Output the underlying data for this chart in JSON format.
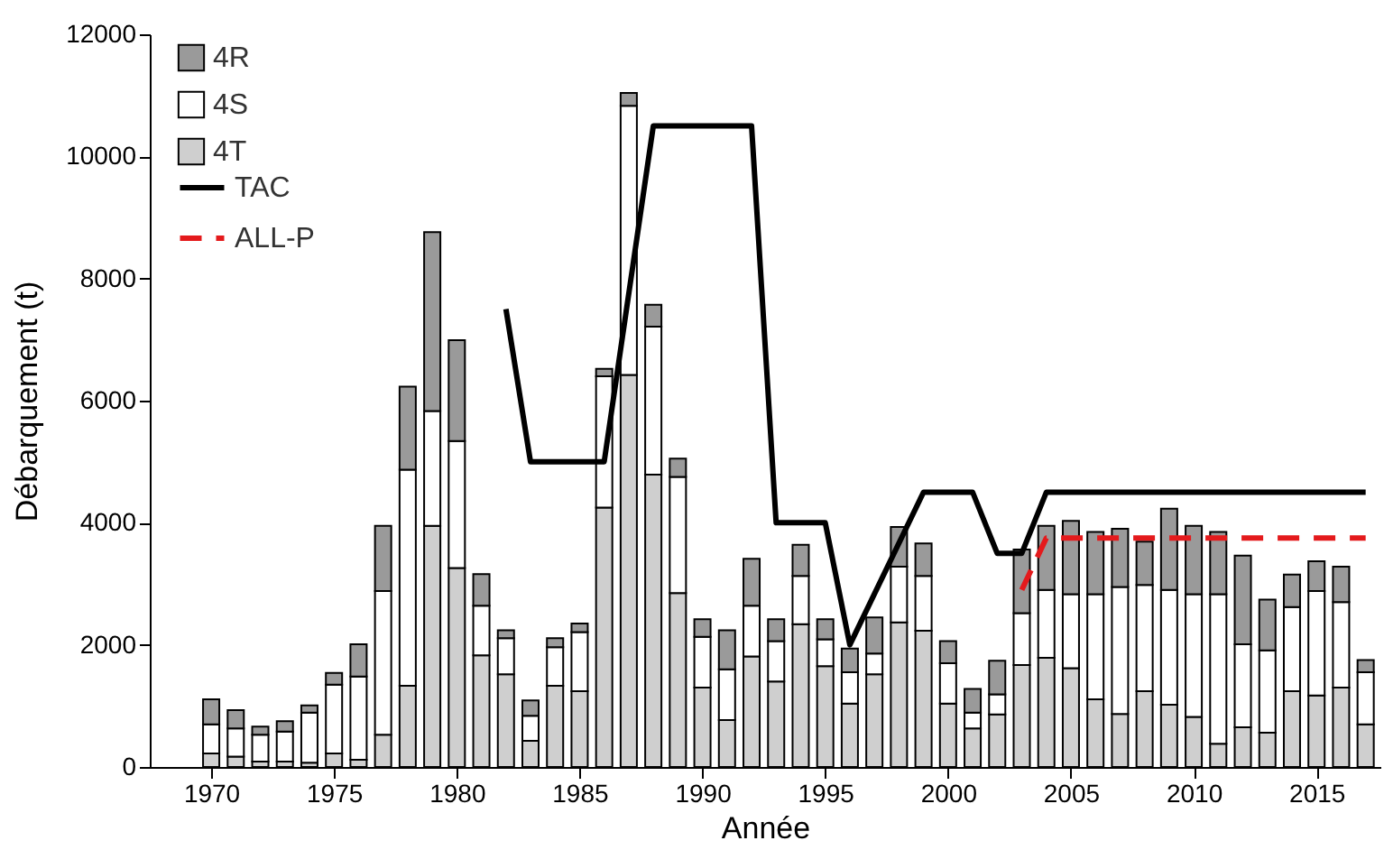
{
  "chart_data": {
    "type": "bar",
    "stacked": true,
    "xlabel": "Année",
    "ylabel": "Débarquement (t)",
    "x": [
      1970,
      1971,
      1972,
      1973,
      1974,
      1975,
      1976,
      1977,
      1978,
      1979,
      1980,
      1981,
      1982,
      1983,
      1984,
      1985,
      1986,
      1987,
      1988,
      1989,
      1990,
      1991,
      1992,
      1993,
      1994,
      1995,
      1996,
      1997,
      1998,
      1999,
      2000,
      2001,
      2002,
      2003,
      2004,
      2005,
      2006,
      2007,
      2008,
      2009,
      2010,
      2011,
      2012,
      2013,
      2014,
      2015,
      2016,
      2017
    ],
    "series": [
      {
        "name": "4T",
        "color": "#cfcfcf",
        "values": [
          220,
          170,
          90,
          90,
          70,
          220,
          120,
          530,
          1330,
          3950,
          3260,
          1830,
          1520,
          430,
          1330,
          1240,
          4250,
          6420,
          4790,
          2850,
          1300,
          770,
          1810,
          1400,
          2340,
          1650,
          1040,
          1520,
          2370,
          2230,
          1040,
          630,
          860,
          1670,
          1790,
          1620,
          1110,
          870,
          1240,
          1020,
          820,
          380,
          650,
          560,
          1240,
          1170,
          1300,
          700
        ]
      },
      {
        "name": "4S",
        "color": "#ffffff",
        "values": [
          480,
          460,
          440,
          490,
          820,
          1130,
          1360,
          2350,
          3540,
          1880,
          2080,
          810,
          590,
          410,
          630,
          970,
          2150,
          4410,
          2420,
          1900,
          830,
          830,
          830,
          660,
          790,
          440,
          510,
          340,
          910,
          900,
          660,
          260,
          330,
          850,
          1110,
          1210,
          1720,
          2080,
          1740,
          1880,
          2010,
          2450,
          1360,
          1350,
          1380,
          1710,
          1400,
          850
        ]
      },
      {
        "name": "4R",
        "color": "#9a9a9a",
        "values": [
          410,
          300,
          130,
          170,
          120,
          190,
          530,
          1070,
          1360,
          2930,
          1650,
          520,
          130,
          250,
          150,
          140,
          120,
          210,
          360,
          300,
          290,
          640,
          770,
          360,
          510,
          330,
          390,
          590,
          650,
          530,
          360,
          390,
          550,
          1040,
          1050,
          1200,
          1020,
          950,
          710,
          1330,
          1120,
          1020,
          1450,
          830,
          530,
          490,
          580,
          200
        ]
      },
      {
        "name": "TAC",
        "type": "line",
        "color": "#000000",
        "line_style": "solid",
        "x": [
          1982,
          1983,
          1986,
          1988,
          1992,
          1993,
          1995,
          1996,
          1999,
          2001,
          2002,
          2003,
          2004,
          2017
        ],
        "values": [
          7500,
          5000,
          5000,
          10500,
          10500,
          4000,
          4000,
          2000,
          4500,
          4500,
          3500,
          3500,
          4500,
          4500
        ]
      },
      {
        "name": "ALL-P",
        "type": "line",
        "color": "#e41a1c",
        "line_style": "dashed",
        "x": [
          2003,
          2004,
          2017
        ],
        "values": [
          2900,
          3750,
          3750
        ]
      }
    ],
    "xlim": [
      1967.5,
      2017.6
    ],
    "xticks": [
      1970,
      1975,
      1980,
      1985,
      1990,
      1995,
      2000,
      2005,
      2010,
      2015
    ],
    "ylim": [
      0,
      12000
    ],
    "yticks": [
      0,
      2000,
      4000,
      6000,
      8000,
      10000,
      12000
    ],
    "legend": "top left"
  }
}
